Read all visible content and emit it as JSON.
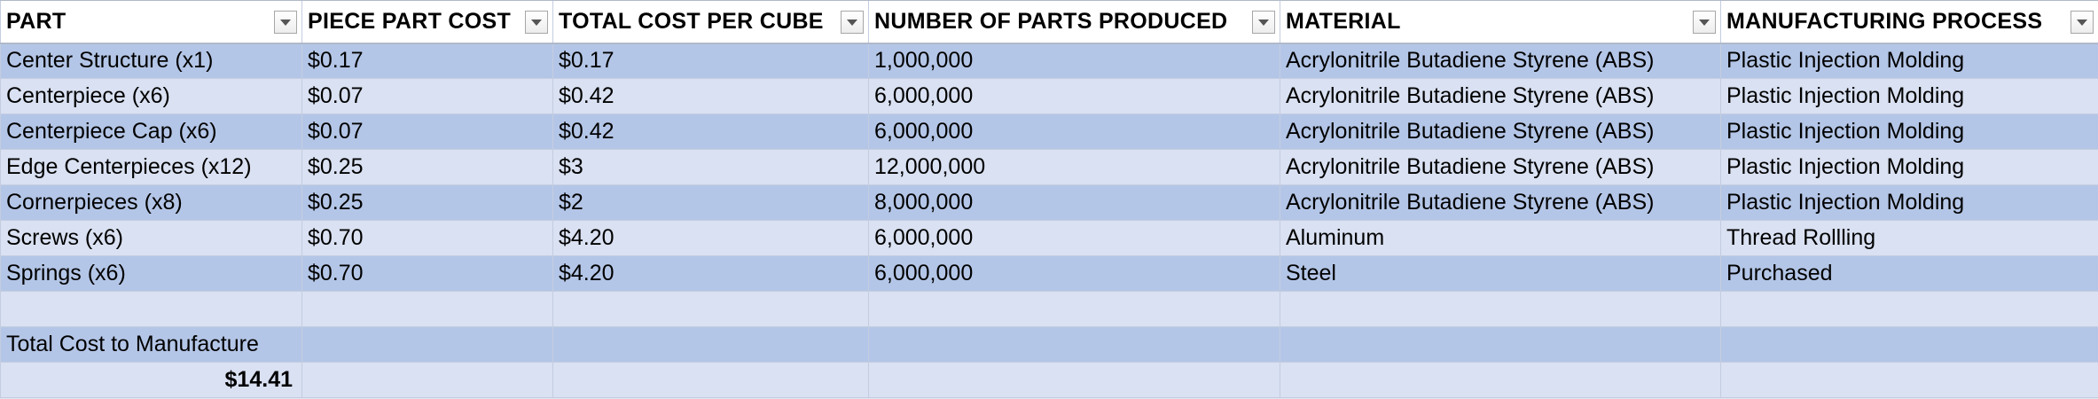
{
  "headers": [
    "PART",
    "PIECE PART COST",
    "TOTAL COST PER CUBE",
    "NUMBER OF PARTS PRODUCED",
    "MATERIAL",
    "MANUFACTURING PROCESS"
  ],
  "rows": [
    [
      "Center Structure (x1)",
      "$0.17",
      "$0.17",
      "1,000,000",
      "Acrylonitrile Butadiene Styrene (ABS)",
      "Plastic Injection Molding"
    ],
    [
      "Centerpiece (x6)",
      "$0.07",
      "$0.42",
      "6,000,000",
      "Acrylonitrile Butadiene Styrene (ABS)",
      "Plastic Injection Molding"
    ],
    [
      "Centerpiece Cap (x6)",
      "$0.07",
      "$0.42",
      "6,000,000",
      "Acrylonitrile Butadiene Styrene (ABS)",
      "Plastic Injection Molding"
    ],
    [
      "Edge Centerpieces (x12)",
      "$0.25",
      "$3",
      "12,000,000",
      "Acrylonitrile Butadiene Styrene (ABS)",
      "Plastic Injection Molding"
    ],
    [
      "Cornerpieces (x8)",
      "$0.25",
      "$2",
      "8,000,000",
      "Acrylonitrile Butadiene Styrene (ABS)",
      "Plastic Injection Molding"
    ],
    [
      "Screws (x6)",
      "$0.70",
      "$4.20",
      "6,000,000",
      "Aluminum",
      "Thread Rollling"
    ],
    [
      "Springs (x6)",
      "$0.70",
      "$4.20",
      "6,000,000",
      "Steel",
      "Purchased"
    ]
  ],
  "summary": {
    "label": "Total Cost to Manufacture",
    "value": "$14.41"
  },
  "colors": {
    "band_dark": "#b4c6e7",
    "band_light": "#d9e1f2",
    "header_bg": "#ffffff"
  },
  "icons": {
    "filter": "filter-dropdown-icon"
  }
}
